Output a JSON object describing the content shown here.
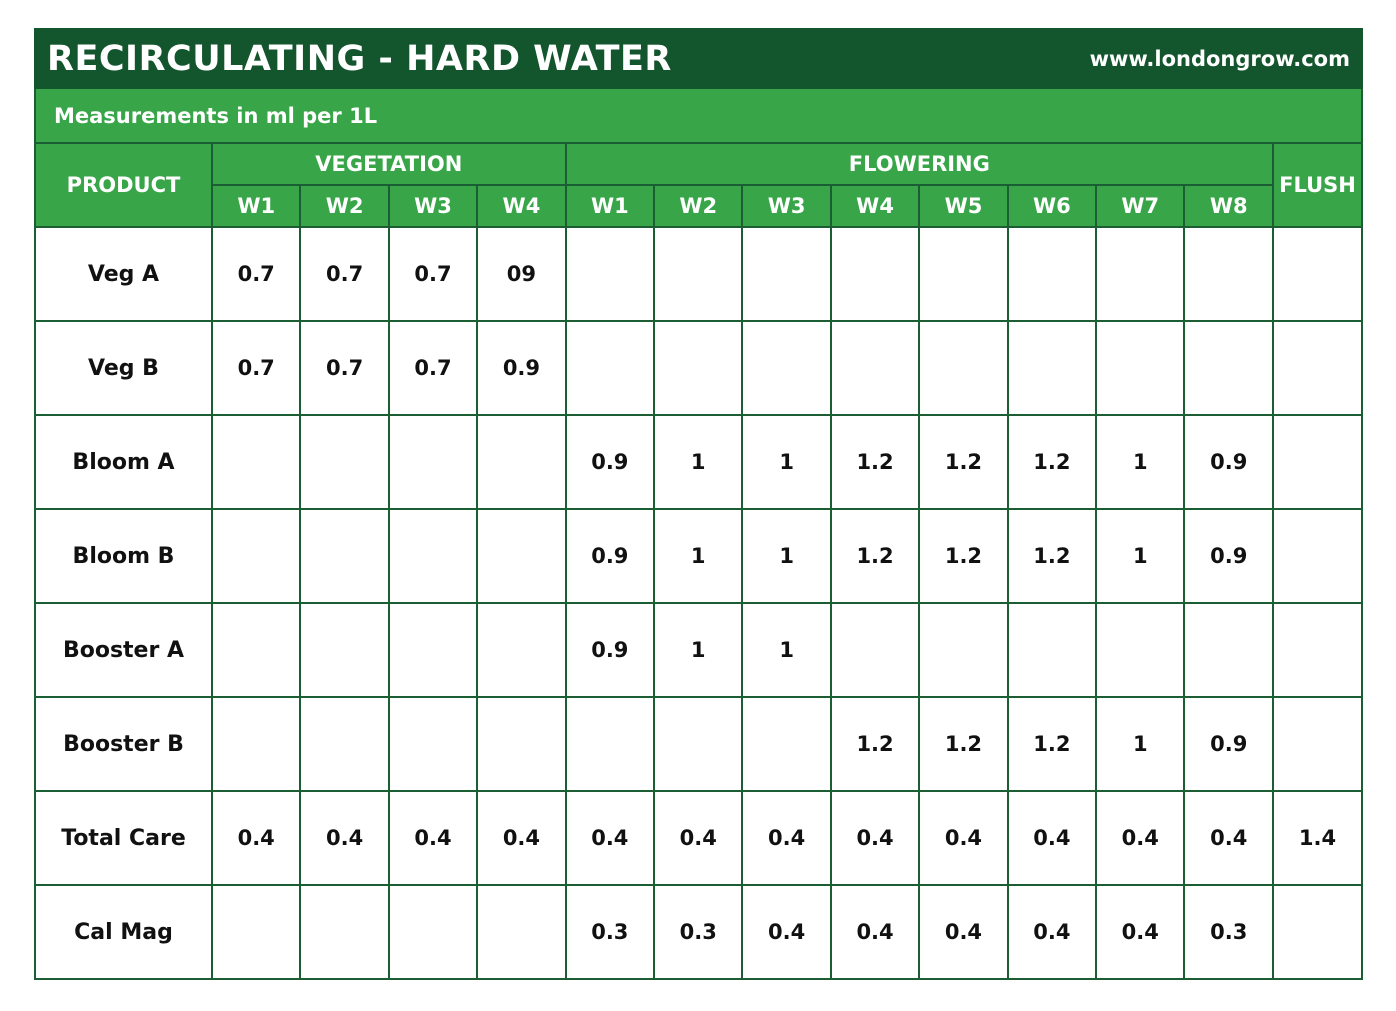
{
  "header": {
    "title": "RECIRCULATING - HARD WATER",
    "url": "www.londongrow.com",
    "subtitle": "Measurements in ml per 1L"
  },
  "colors": {
    "dark_green": "#13552c",
    "green": "#38a648"
  },
  "table": {
    "product_label": "PRODUCT",
    "vegetation_label": "VEGETATION",
    "flowering_label": "FLOWERING",
    "flush_label": "FLUSH",
    "veg_weeks": [
      "W1",
      "W2",
      "W3",
      "W4"
    ],
    "flower_weeks": [
      "W1",
      "W2",
      "W3",
      "W4",
      "W5",
      "W6",
      "W7",
      "W8"
    ],
    "rows": [
      {
        "product": "Veg A",
        "veg": [
          "0.7",
          "0.7",
          "0.7",
          "09"
        ],
        "flower": [
          "",
          "",
          "",
          "",
          "",
          "",
          "",
          ""
        ],
        "flush": ""
      },
      {
        "product": "Veg B",
        "veg": [
          "0.7",
          "0.7",
          "0.7",
          "0.9"
        ],
        "flower": [
          "",
          "",
          "",
          "",
          "",
          "",
          "",
          ""
        ],
        "flush": ""
      },
      {
        "product": "Bloom A",
        "veg": [
          "",
          "",
          "",
          ""
        ],
        "flower": [
          "0.9",
          "1",
          "1",
          "1.2",
          "1.2",
          "1.2",
          "1",
          "0.9"
        ],
        "flush": ""
      },
      {
        "product": "Bloom B",
        "veg": [
          "",
          "",
          "",
          ""
        ],
        "flower": [
          "0.9",
          "1",
          "1",
          "1.2",
          "1.2",
          "1.2",
          "1",
          "0.9"
        ],
        "flush": ""
      },
      {
        "product": "Booster A",
        "veg": [
          "",
          "",
          "",
          ""
        ],
        "flower": [
          "0.9",
          "1",
          "1",
          "",
          "",
          "",
          "",
          ""
        ],
        "flush": ""
      },
      {
        "product": "Booster B",
        "veg": [
          "",
          "",
          "",
          ""
        ],
        "flower": [
          "",
          "",
          "",
          "1.2",
          "1.2",
          "1.2",
          "1",
          "0.9"
        ],
        "flush": ""
      },
      {
        "product": "Total Care",
        "veg": [
          "0.4",
          "0.4",
          "0.4",
          "0.4"
        ],
        "flower": [
          "0.4",
          "0.4",
          "0.4",
          "0.4",
          "0.4",
          "0.4",
          "0.4",
          "0.4"
        ],
        "flush": "1.4"
      },
      {
        "product": "Cal Mag",
        "veg": [
          "",
          "",
          "",
          ""
        ],
        "flower": [
          "0.3",
          "0.3",
          "0.4",
          "0.4",
          "0.4",
          "0.4",
          "0.4",
          "0.3"
        ],
        "flush": ""
      }
    ]
  }
}
